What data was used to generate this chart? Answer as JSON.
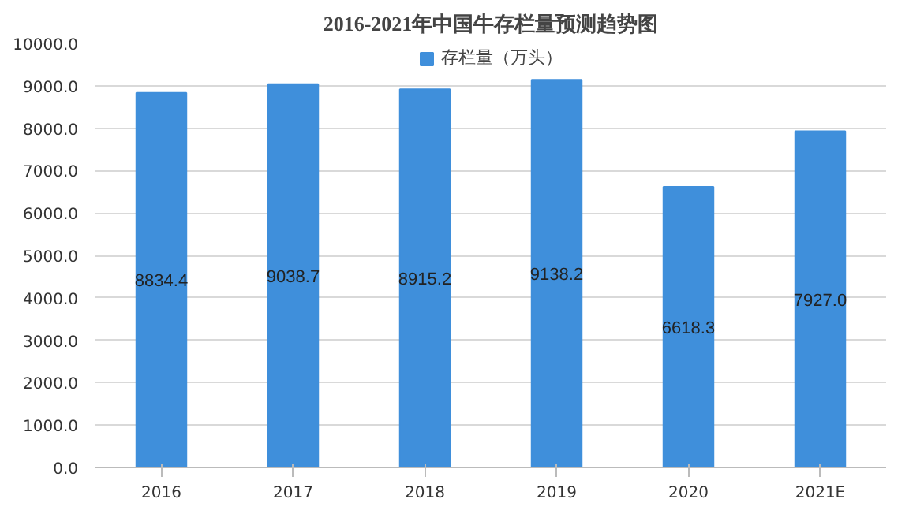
{
  "chart_data": {
    "type": "bar",
    "title": "2016-2021年中国牛存栏量预测趋势图",
    "categories": [
      "2016",
      "2017",
      "2018",
      "2019",
      "2020",
      "2021E"
    ],
    "series": [
      {
        "name": "存栏量（万头）",
        "color": "#3f8fdb",
        "values": [
          8834.4,
          9038.7,
          8915.2,
          9138.2,
          6618.3,
          7927.0
        ],
        "value_labels": [
          "8834.4",
          "9038.7",
          "8915.2",
          "9138.2",
          "6618.3",
          "7927.0"
        ]
      }
    ],
    "ylim": [
      0,
      10000
    ],
    "yticks": [
      {
        "value": 0,
        "label": "0.0"
      },
      {
        "value": 1000,
        "label": "1000.0"
      },
      {
        "value": 2000,
        "label": "2000.0"
      },
      {
        "value": 3000,
        "label": "3000.0"
      },
      {
        "value": 4000,
        "label": "4000.0"
      },
      {
        "value": 5000,
        "label": "5000.0"
      },
      {
        "value": 6000,
        "label": "6000.0"
      },
      {
        "value": 7000,
        "label": "7000.0"
      },
      {
        "value": 8000,
        "label": "8000.0"
      },
      {
        "value": 9000,
        "label": "9000.0"
      },
      {
        "value": 10000,
        "label": "10000.0"
      }
    ],
    "grid": "y",
    "legend": "top"
  }
}
